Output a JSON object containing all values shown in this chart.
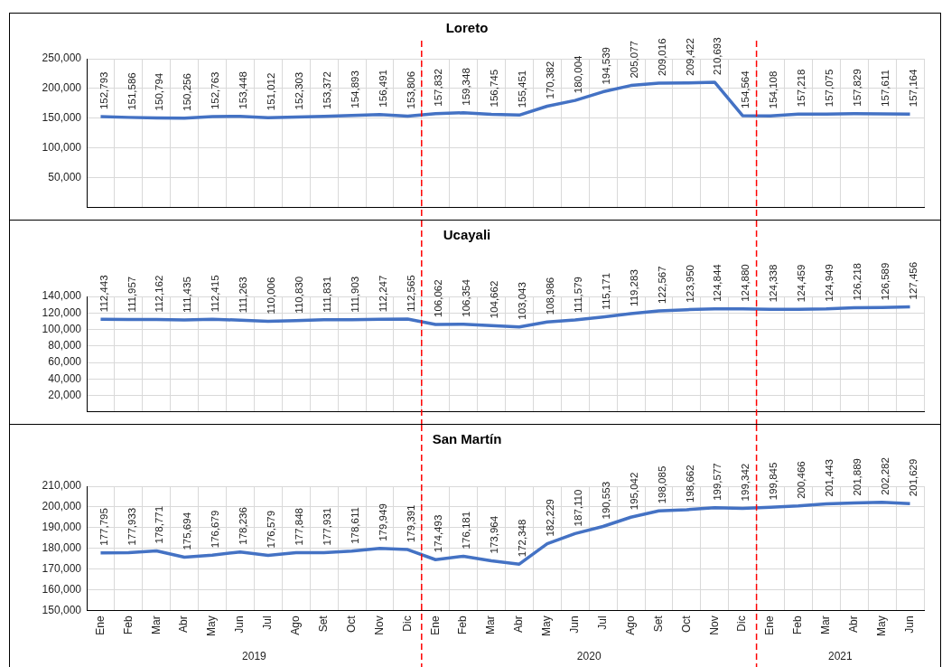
{
  "chart_data": [
    {
      "type": "line",
      "title": "Loreto",
      "categories": [
        "Ene",
        "Feb",
        "Mar",
        "Abr",
        "May",
        "Jun",
        "Jul",
        "Ago",
        "Set",
        "Oct",
        "Nov",
        "Dic",
        "Ene",
        "Feb",
        "Mar",
        "Abr",
        "May",
        "Jun",
        "Jul",
        "Ago",
        "Set",
        "Oct",
        "Nov",
        "Dic",
        "Ene",
        "Feb",
        "Mar",
        "Abr",
        "May",
        "Jun"
      ],
      "series": [
        {
          "color": "#4472c4",
          "values": [
            152793,
            151586,
            150794,
            150256,
            152763,
            153448,
            151012,
            152303,
            153372,
            154893,
            156491,
            153806,
            157832,
            159348,
            156745,
            155451,
            170382,
            180004,
            194539,
            205077,
            209016,
            209422,
            210693,
            154564,
            154108,
            157218,
            157075,
            157829,
            157611,
            157164
          ],
          "value_labels": [
            "152,793",
            "151,586",
            "150,794",
            "150,256",
            "152,763",
            "153,448",
            "151,012",
            "152,303",
            "153,372",
            "154,893",
            "156,491",
            "153,806",
            "157,832",
            "159,348",
            "156,745",
            "155,451",
            "170,382",
            "180,004",
            "194,539",
            "205,077",
            "209,016",
            "209,422",
            "210,693",
            "154,564",
            "154,108",
            "157,218",
            "157,075",
            "157,829",
            "157,611",
            "157,164"
          ]
        }
      ],
      "ylim": [
        0,
        250000
      ],
      "yticks": [
        {
          "value": 0,
          "label": null
        },
        {
          "value": 50000,
          "label": "50,000"
        },
        {
          "value": 100000,
          "label": "100,000"
        },
        {
          "value": 150000,
          "label": "150,000"
        },
        {
          "value": 200000,
          "label": "200,000"
        },
        {
          "value": 250000,
          "label": "250,000"
        }
      ],
      "grid": true,
      "legend": false,
      "marker": "none",
      "line_style": "solid",
      "tick_labels": "y"
    },
    {
      "type": "line",
      "title": "Ucayali",
      "categories": [
        "Ene",
        "Feb",
        "Mar",
        "Abr",
        "May",
        "Jun",
        "Jul",
        "Ago",
        "Set",
        "Oct",
        "Nov",
        "Dic",
        "Ene",
        "Feb",
        "Mar",
        "Abr",
        "May",
        "Jun",
        "Jul",
        "Ago",
        "Set",
        "Oct",
        "Nov",
        "Dic",
        "Ene",
        "Feb",
        "Mar",
        "Abr",
        "May",
        "Jun"
      ],
      "series": [
        {
          "color": "#4472c4",
          "values": [
            112443,
            111957,
            112162,
            111435,
            112415,
            111263,
            110006,
            110830,
            111831,
            111903,
            112247,
            112565,
            106062,
            106354,
            104662,
            103043,
            108986,
            111579,
            115171,
            119283,
            122567,
            123950,
            124844,
            124880,
            124338,
            124459,
            124949,
            126218,
            126589,
            127456
          ],
          "value_labels": [
            "112,443",
            "111,957",
            "112,162",
            "111,435",
            "112,415",
            "111,263",
            "110,006",
            "110,830",
            "111,831",
            "111,903",
            "112,247",
            "112,565",
            "106,062",
            "106,354",
            "104,662",
            "103,043",
            "108,986",
            "111,579",
            "115,171",
            "119,283",
            "122,567",
            "123,950",
            "124,844",
            "124,880",
            "124,338",
            "124,459",
            "124,949",
            "126,218",
            "126,589",
            "127,456"
          ]
        }
      ],
      "ylim": [
        0,
        140000
      ],
      "yticks": [
        {
          "value": 0,
          "label": null
        },
        {
          "value": 20000,
          "label": "20,000"
        },
        {
          "value": 40000,
          "label": "40,000"
        },
        {
          "value": 60000,
          "label": "60,000"
        },
        {
          "value": 80000,
          "label": "80,000"
        },
        {
          "value": 100000,
          "label": "100,000"
        },
        {
          "value": 120000,
          "label": "120,000"
        },
        {
          "value": 140000,
          "label": "140,000"
        }
      ],
      "grid": true,
      "legend": false,
      "marker": "none",
      "line_style": "solid",
      "tick_labels": "y"
    },
    {
      "type": "line",
      "title": "San Martín",
      "categories": [
        "Ene",
        "Feb",
        "Mar",
        "Abr",
        "May",
        "Jun",
        "Jul",
        "Ago",
        "Set",
        "Oct",
        "Nov",
        "Dic",
        "Ene",
        "Feb",
        "Mar",
        "Abr",
        "May",
        "Jun",
        "Jul",
        "Ago",
        "Set",
        "Oct",
        "Nov",
        "Dic",
        "Ene",
        "Feb",
        "Mar",
        "Abr",
        "May",
        "Jun"
      ],
      "series": [
        {
          "color": "#4472c4",
          "values": [
            177795,
            177933,
            178771,
            175694,
            176679,
            178236,
            176579,
            177848,
            177931,
            178611,
            179949,
            179391,
            174493,
            176181,
            173964,
            172348,
            182229,
            187110,
            190553,
            195042,
            198085,
            198662,
            199577,
            199342,
            199845,
            200466,
            201443,
            201889,
            202282,
            201629
          ],
          "value_labels": [
            "177,795",
            "177,933",
            "178,771",
            "175,694",
            "176,679",
            "178,236",
            "176,579",
            "177,848",
            "177,931",
            "178,611",
            "179,949",
            "179,391",
            "174,493",
            "176,181",
            "173,964",
            "172,348",
            "182,229",
            "187,110",
            "190,553",
            "195,042",
            "198,085",
            "198,662",
            "199,577",
            "199,342",
            "199,845",
            "200,466",
            "201,443",
            "201,889",
            "202,282",
            "201,629"
          ]
        }
      ],
      "ylim": [
        150000,
        210000
      ],
      "yticks": [
        {
          "value": 150000,
          "label": "150,000"
        },
        {
          "value": 160000,
          "label": "160,000"
        },
        {
          "value": 170000,
          "label": "170,000"
        },
        {
          "value": 180000,
          "label": "180,000"
        },
        {
          "value": 190000,
          "label": "190,000"
        },
        {
          "value": 200000,
          "label": "200,000"
        },
        {
          "value": 210000,
          "label": "210,000"
        }
      ],
      "grid": true,
      "legend": false,
      "marker": "none",
      "line_style": "solid",
      "annotations": [
        "2019",
        "2020",
        "2021"
      ]
    }
  ]
}
